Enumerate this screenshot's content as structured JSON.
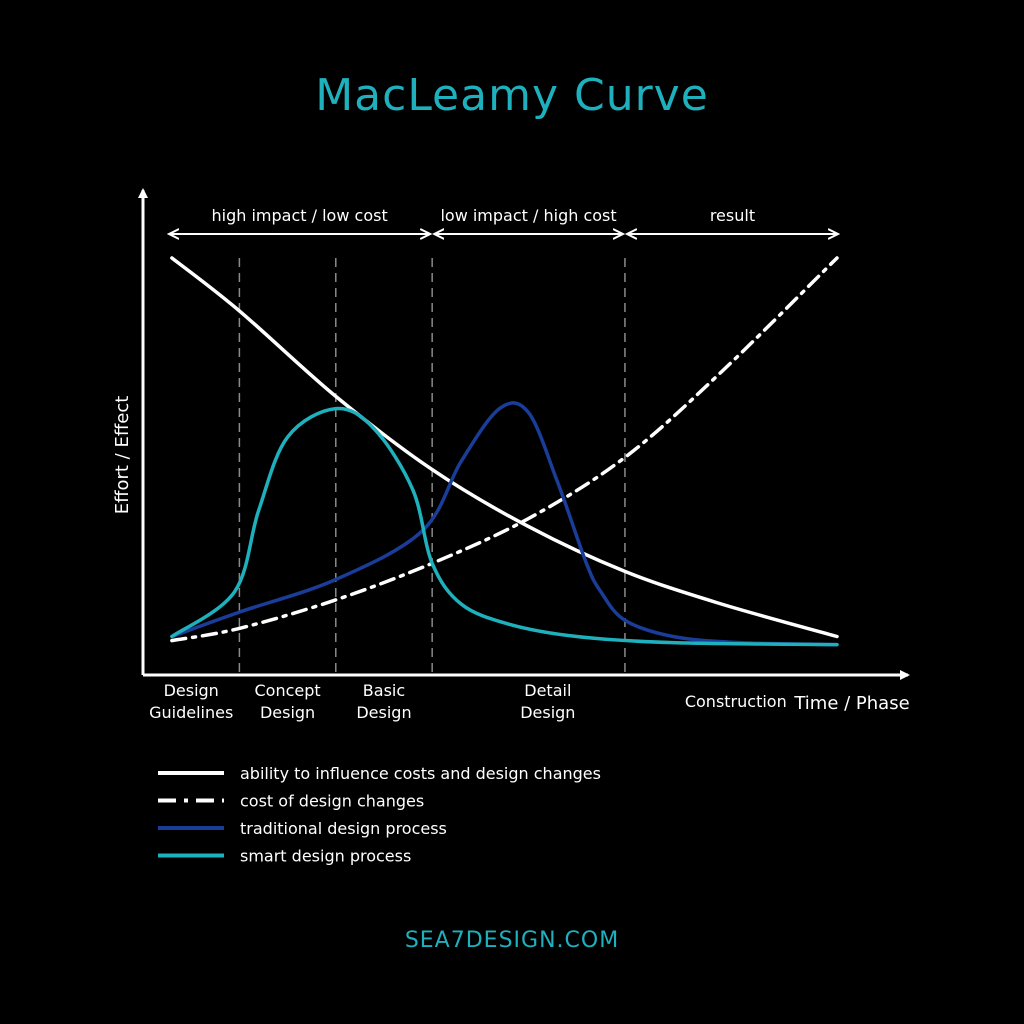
{
  "chart_data": {
    "type": "line",
    "title": "MacLeamy Curve",
    "xlabel": "Time / Phase",
    "ylabel": "Effort / Effect",
    "xlim": [
      0,
      7.2
    ],
    "ylim": [
      0,
      10
    ],
    "grid": false,
    "phases": [
      {
        "lines": [
          "Design",
          "Guidelines"
        ],
        "center": 0.5
      },
      {
        "lines": [
          "Concept",
          "Design"
        ],
        "center": 1.5
      },
      {
        "lines": [
          "Basic",
          "Design"
        ],
        "center": 2.5
      },
      {
        "lines": [
          "Detail",
          "Design"
        ],
        "center": 4.2
      },
      {
        "lines": [
          "Construction"
        ],
        "center": 6.15
      }
    ],
    "boundaries": [
      1,
      2,
      3,
      5
    ],
    "zones": [
      {
        "label": "high impact / low cost",
        "from": 0.25,
        "to": 3
      },
      {
        "label": "low impact / high cost",
        "from": 3,
        "to": 5
      },
      {
        "label": "result",
        "from": 5,
        "to": 7.3
      }
    ],
    "series": [
      {
        "name": "ability to influence costs and design changes",
        "color": "#ffffff",
        "style": "solid",
        "x": [
          0.3,
          1.0,
          2.0,
          3.0,
          4.0,
          5.0,
          6.0,
          7.2
        ],
        "y": [
          10.0,
          8.7,
          6.6,
          4.8,
          3.4,
          2.3,
          1.5,
          0.7
        ]
      },
      {
        "name": "cost of design changes",
        "color": "#ffffff",
        "style": "dashdot",
        "x": [
          0.3,
          1.0,
          2.0,
          3.0,
          4.0,
          5.0,
          6.0,
          7.2
        ],
        "y": [
          0.6,
          0.9,
          1.6,
          2.5,
          3.6,
          5.1,
          7.2,
          10.0
        ]
      },
      {
        "name": "traditional design process",
        "color": "#1a3d99",
        "style": "solid",
        "x": [
          0.3,
          1.0,
          2.0,
          2.9,
          3.3,
          3.7,
          4.0,
          4.3,
          4.6,
          4.75,
          5.0,
          5.5,
          6.2,
          7.2
        ],
        "y": [
          0.7,
          1.3,
          2.1,
          3.3,
          5.0,
          6.3,
          6.2,
          4.5,
          2.5,
          1.8,
          1.1,
          0.7,
          0.55,
          0.5
        ]
      },
      {
        "name": "smart design process",
        "color": "#1fb0bd",
        "style": "solid",
        "x": [
          0.3,
          0.95,
          1.2,
          1.5,
          2.0,
          2.4,
          2.8,
          3.0,
          3.3,
          3.8,
          4.5,
          5.5,
          7.2
        ],
        "y": [
          0.7,
          1.8,
          3.8,
          5.6,
          6.3,
          5.8,
          4.3,
          2.5,
          1.5,
          1.0,
          0.7,
          0.55,
          0.5
        ]
      }
    ],
    "legend_position": "bottom-left"
  },
  "brand": "SEA7DESIGN.COM",
  "colors": {
    "accent": "#1fb0bd",
    "traditional": "#1a3d99",
    "background": "#000000",
    "foreground": "#ffffff"
  }
}
